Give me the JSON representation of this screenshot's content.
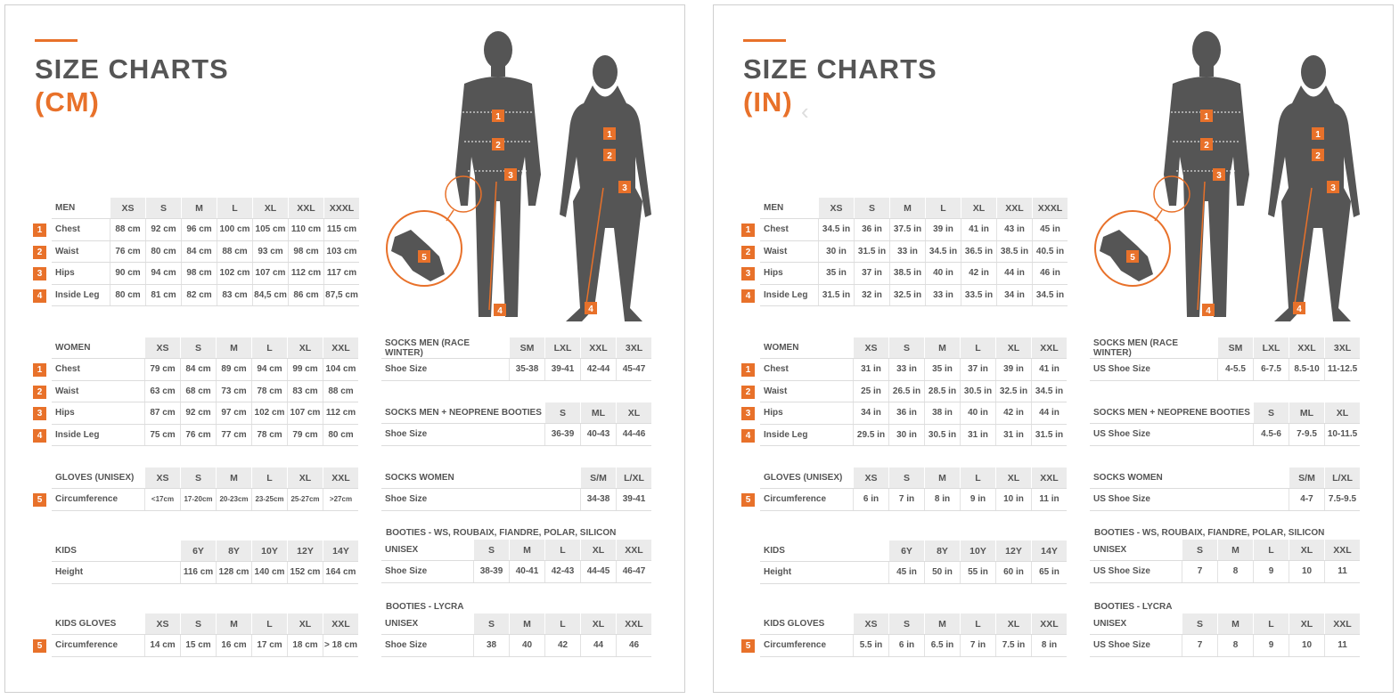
{
  "colors": {
    "accent": "#e8712a",
    "text": "#555555",
    "header_bg": "#ebebeb",
    "figure": "#555555"
  },
  "figure_badges": [
    "1",
    "2",
    "3",
    "4",
    "5"
  ],
  "panels": [
    {
      "title": "SIZE CHARTS",
      "unit": "(CM)",
      "tables": {
        "men": {
          "label": "MEN",
          "cols": [
            "XS",
            "S",
            "M",
            "L",
            "XL",
            "XXL",
            "XXXL"
          ],
          "rows": [
            {
              "badge": "1",
              "label": "Chest",
              "values": [
                "88 cm",
                "92 cm",
                "96 cm",
                "100 cm",
                "105 cm",
                "110 cm",
                "115 cm"
              ]
            },
            {
              "badge": "2",
              "label": "Waist",
              "values": [
                "76 cm",
                "80 cm",
                "84 cm",
                "88 cm",
                "93 cm",
                "98 cm",
                "103 cm"
              ]
            },
            {
              "badge": "3",
              "label": "Hips",
              "values": [
                "90 cm",
                "94 cm",
                "98 cm",
                "102 cm",
                "107 cm",
                "112 cm",
                "117 cm"
              ]
            },
            {
              "badge": "4",
              "label": "Inside Leg",
              "values": [
                "80 cm",
                "81 cm",
                "82 cm",
                "83 cm",
                "84,5 cm",
                "86 cm",
                "87,5 cm"
              ]
            }
          ]
        },
        "women": {
          "label": "WOMEN",
          "cols": [
            "XS",
            "S",
            "M",
            "L",
            "XL",
            "XXL"
          ],
          "rows": [
            {
              "badge": "1",
              "label": "Chest",
              "values": [
                "79 cm",
                "84 cm",
                "89 cm",
                "94 cm",
                "99 cm",
                "104 cm"
              ]
            },
            {
              "badge": "2",
              "label": "Waist",
              "values": [
                "63 cm",
                "68 cm",
                "73 cm",
                "78 cm",
                "83 cm",
                "88 cm"
              ]
            },
            {
              "badge": "3",
              "label": "Hips",
              "values": [
                "87 cm",
                "92 cm",
                "97 cm",
                "102 cm",
                "107 cm",
                "112 cm"
              ]
            },
            {
              "badge": "4",
              "label": "Inside Leg",
              "values": [
                "75 cm",
                "76 cm",
                "77 cm",
                "78 cm",
                "79 cm",
                "80 cm"
              ]
            }
          ]
        },
        "gloves": {
          "label": "GLOVES (UNISEX)",
          "cols": [
            "XS",
            "S",
            "M",
            "L",
            "XL",
            "XXL"
          ],
          "small": true,
          "rows": [
            {
              "badge": "5",
              "label": "Circumference",
              "values": [
                "<17cm",
                "17-20cm",
                "20-23cm",
                "23-25cm",
                "25-27cm",
                ">27cm"
              ]
            }
          ]
        },
        "kids": {
          "label": "KIDS",
          "cols": [
            "6Y",
            "8Y",
            "10Y",
            "12Y",
            "14Y"
          ],
          "rows": [
            {
              "label": "Height",
              "values": [
                "116 cm",
                "128 cm",
                "140 cm",
                "152 cm",
                "164 cm"
              ]
            }
          ]
        },
        "kids_gloves": {
          "label": "KIDS GLOVES",
          "cols": [
            "XS",
            "S",
            "M",
            "L",
            "XL",
            "XXL"
          ],
          "rows": [
            {
              "badge": "5",
              "label": "Circumference",
              "values": [
                "14 cm",
                "15 cm",
                "16 cm",
                "17 cm",
                "18 cm",
                "> 18 cm"
              ]
            }
          ]
        },
        "socks_race": {
          "label": "SOCKS MEN (RACE WINTER)",
          "cols": [
            "SM",
            "LXL",
            "XXL",
            "3XL"
          ],
          "rows": [
            {
              "label": "Shoe Size",
              "values": [
                "35-38",
                "39-41",
                "42-44",
                "45-47"
              ]
            }
          ]
        },
        "socks_neoprene": {
          "label": "SOCKS MEN + NEOPRENE BOOTIES",
          "cols": [
            "S",
            "ML",
            "XL"
          ],
          "rows": [
            {
              "label": "Shoe Size",
              "values": [
                "36-39",
                "40-43",
                "44-46"
              ]
            }
          ]
        },
        "socks_women": {
          "label": "SOCKS WOMEN",
          "cols": [
            "S/M",
            "L/XL"
          ],
          "rows": [
            {
              "label": "Shoe Size",
              "values": [
                "34-38",
                "39-41"
              ]
            }
          ]
        },
        "booties_ws": {
          "title": "BOOTIES - WS, ROUBAIX, FIANDRE, POLAR, SILICON",
          "label": "Unisex",
          "cols": [
            "S",
            "M",
            "L",
            "XL",
            "XXL"
          ],
          "rows": [
            {
              "label": "Shoe Size",
              "values": [
                "38-39",
                "40-41",
                "42-43",
                "44-45",
                "46-47"
              ]
            }
          ]
        },
        "booties_lycra": {
          "title": "BOOTIES - LYCRA",
          "label": "Unisex",
          "cols": [
            "S",
            "M",
            "L",
            "XL",
            "XXL"
          ],
          "rows": [
            {
              "label": "Shoe Size",
              "values": [
                "38",
                "40",
                "42",
                "44",
                "46"
              ]
            }
          ]
        }
      }
    },
    {
      "title": "SIZE CHARTS",
      "unit": "(IN)",
      "tables": {
        "men": {
          "label": "MEN",
          "cols": [
            "XS",
            "S",
            "M",
            "L",
            "XL",
            "XXL",
            "XXXL"
          ],
          "rows": [
            {
              "badge": "1",
              "label": "Chest",
              "values": [
                "34.5 in",
                "36 in",
                "37.5 in",
                "39 in",
                "41 in",
                "43 in",
                "45 in"
              ]
            },
            {
              "badge": "2",
              "label": "Waist",
              "values": [
                "30 in",
                "31.5 in",
                "33 in",
                "34.5 in",
                "36.5 in",
                "38.5 in",
                "40.5 in"
              ]
            },
            {
              "badge": "3",
              "label": "Hips",
              "values": [
                "35 in",
                "37 in",
                "38.5 in",
                "40 in",
                "42 in",
                "44 in",
                "46 in"
              ]
            },
            {
              "badge": "4",
              "label": "Inside Leg",
              "values": [
                "31.5 in",
                "32 in",
                "32.5 in",
                "33 in",
                "33.5 in",
                "34 in",
                "34.5 in"
              ]
            }
          ]
        },
        "women": {
          "label": "WOMEN",
          "cols": [
            "XS",
            "S",
            "M",
            "L",
            "XL",
            "XXL"
          ],
          "rows": [
            {
              "badge": "1",
              "label": "Chest",
              "values": [
                "31 in",
                "33 in",
                "35 in",
                "37 in",
                "39 in",
                "41 in"
              ]
            },
            {
              "badge": "2",
              "label": "Waist",
              "values": [
                "25 in",
                "26.5 in",
                "28.5 in",
                "30.5 in",
                "32.5 in",
                "34.5 in"
              ]
            },
            {
              "badge": "3",
              "label": "Hips",
              "values": [
                "34 in",
                "36 in",
                "38 in",
                "40 in",
                "42 in",
                "44 in"
              ]
            },
            {
              "badge": "4",
              "label": "Inside Leg",
              "values": [
                "29.5 in",
                "30 in",
                "30.5 in",
                "31 in",
                "31 in",
                "31.5 in"
              ]
            }
          ]
        },
        "gloves": {
          "label": "GLOVES (UNISEX)",
          "cols": [
            "XS",
            "S",
            "M",
            "L",
            "XL",
            "XXL"
          ],
          "rows": [
            {
              "badge": "5",
              "label": "Circumference",
              "values": [
                "6 in",
                "7 in",
                "8 in",
                "9 in",
                "10 in",
                "11 in"
              ]
            }
          ]
        },
        "kids": {
          "label": "KIDS",
          "cols": [
            "6Y",
            "8Y",
            "10Y",
            "12Y",
            "14Y"
          ],
          "rows": [
            {
              "label": "Height",
              "values": [
                "45 in",
                "50 in",
                "55 in",
                "60 in",
                "65 in"
              ]
            }
          ]
        },
        "kids_gloves": {
          "label": "KIDS GLOVES",
          "cols": [
            "XS",
            "S",
            "M",
            "L",
            "XL",
            "XXL"
          ],
          "rows": [
            {
              "badge": "5",
              "label": "Circumference",
              "values": [
                "5.5 in",
                "6 in",
                "6.5 in",
                "7 in",
                "7.5 in",
                "8 in"
              ]
            }
          ]
        },
        "socks_race": {
          "label": "SOCKS MEN (RACE WINTER)",
          "cols": [
            "SM",
            "LXL",
            "XXL",
            "3XL"
          ],
          "rows": [
            {
              "label": "US Shoe Size",
              "values": [
                "4-5.5",
                "6-7.5",
                "8.5-10",
                "11-12.5"
              ]
            }
          ]
        },
        "socks_neoprene": {
          "label": "SOCKS MEN + NEOPRENE BOOTIES",
          "cols": [
            "S",
            "ML",
            "XL"
          ],
          "rows": [
            {
              "label": "US Shoe Size",
              "values": [
                "4.5-6",
                "7-9.5",
                "10-11.5"
              ]
            }
          ]
        },
        "socks_women": {
          "label": "SOCKS WOMEN",
          "cols": [
            "S/M",
            "L/XL"
          ],
          "rows": [
            {
              "label": "US Shoe Size",
              "values": [
                "4-7",
                "7.5-9.5"
              ]
            }
          ]
        },
        "booties_ws": {
          "title": "BOOTIES - WS, ROUBAIX, FIANDRE, POLAR, SILICON",
          "label": "Unisex",
          "cols": [
            "S",
            "M",
            "L",
            "XL",
            "XXL"
          ],
          "rows": [
            {
              "label": "US Shoe Size",
              "values": [
                "7",
                "8",
                "9",
                "10",
                "11"
              ]
            }
          ]
        },
        "booties_lycra": {
          "title": "BOOTIES - LYCRA",
          "label": "Unisex",
          "cols": [
            "S",
            "M",
            "L",
            "XL",
            "XXL"
          ],
          "rows": [
            {
              "label": "US Shoe Size",
              "values": [
                "7",
                "8",
                "9",
                "10",
                "11"
              ]
            }
          ]
        }
      }
    }
  ]
}
